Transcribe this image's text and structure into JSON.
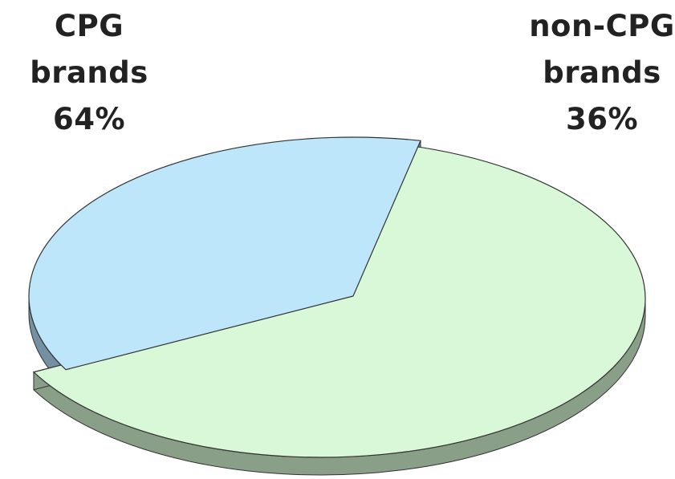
{
  "chart_data": {
    "type": "pie",
    "style": "3d-exploded",
    "title": "",
    "slices": [
      {
        "label_lines": [
          "CPG",
          "brands"
        ],
        "value": 64,
        "value_label": "64%",
        "color": "#d8f8d8",
        "side_color": "#8a9f88"
      },
      {
        "label_lines": [
          "non-CPG",
          "brands"
        ],
        "value": 36,
        "value_label": "36%",
        "color": "#bde6fb",
        "side_color": "#7590a2"
      }
    ],
    "legend": "none"
  }
}
